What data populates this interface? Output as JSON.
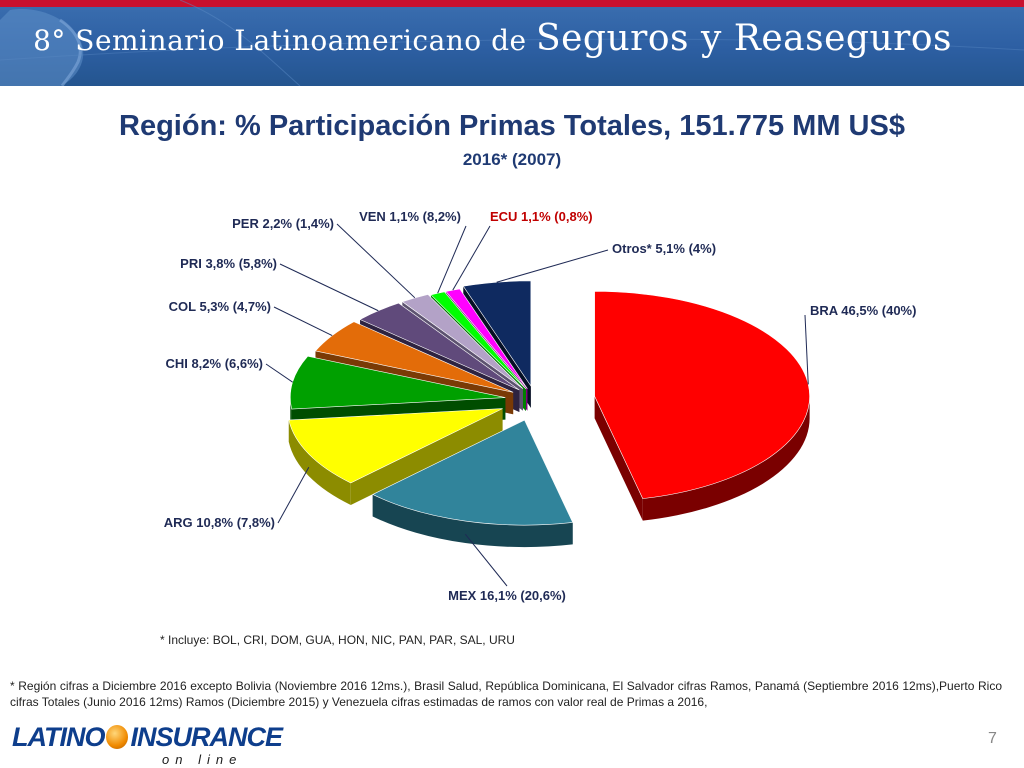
{
  "banner": {
    "prefix": "8° Seminario Latinoamericano de",
    "emphasis": "Seguros y Reaseguros"
  },
  "title": "Región: % Participación Primas Totales, 151.775 MM US$",
  "subtitle": "2016* (2007)",
  "chart_data": {
    "type": "pie",
    "title": "Región: % Participación Primas Totales, 151.775 MM US$",
    "subtitle": "2016* (2007)",
    "slices": [
      {
        "name": "BRA",
        "value": 46.5,
        "prev": 40.0,
        "label": "BRA 46,5% (40%)",
        "color": "#ff0000",
        "dark": "#7a0000",
        "label_red": false
      },
      {
        "name": "MEX",
        "value": 16.1,
        "prev": 20.6,
        "label": "MEX 16,1% (20,6%)",
        "color": "#31849b",
        "dark": "#174552",
        "label_red": false
      },
      {
        "name": "ARG",
        "value": 10.8,
        "prev": 7.8,
        "label": "ARG 10,8% (7,8%)",
        "color": "#ffff00",
        "dark": "#8c8c00",
        "label_red": false
      },
      {
        "name": "CHI",
        "value": 8.2,
        "prev": 6.6,
        "label": "CHI 8,2% (6,6%)",
        "color": "#00a000",
        "dark": "#004d00",
        "label_red": false
      },
      {
        "name": "COL",
        "value": 5.3,
        "prev": 4.7,
        "label": "COL 5,3% (4,7%)",
        "color": "#e36c09",
        "dark": "#7a3a05",
        "label_red": false
      },
      {
        "name": "PRI",
        "value": 3.8,
        "prev": 5.8,
        "label": "PRI 3,8% (5,8%)",
        "color": "#604a7b",
        "dark": "#2e2340",
        "label_red": false
      },
      {
        "name": "PER",
        "value": 2.2,
        "prev": 1.4,
        "label": "PER 2,2% (1,4%)",
        "color": "#b3a2c7",
        "dark": "#5d5370",
        "label_red": false
      },
      {
        "name": "VEN",
        "value": 1.1,
        "prev": 8.2,
        "label": "VEN 1,1% (8,2%)",
        "color": "#00ff00",
        "dark": "#008000",
        "label_red": false
      },
      {
        "name": "ECU",
        "value": 1.1,
        "prev": 0.8,
        "label": "ECU 1,1% (0,8%)",
        "color": "#ff00ff",
        "dark": "#800080",
        "label_red": true
      },
      {
        "name": "Otros*",
        "value": 5.1,
        "prev": 4.0,
        "label": "Otros* 5,1% (4%)",
        "color": "#0f2a60",
        "dark": "#050f24",
        "label_red": false
      }
    ]
  },
  "footnotes": {
    "otros": "* Incluye: BOL, CRI, DOM, GUA, HON, NIC, PAN, PAR, SAL, URU",
    "region": "* Región cifras a Diciembre 2016 excepto Bolivia (Noviembre 2016 12ms.), Brasil Salud, República Dominicana, El Salvador cifras Ramos, Panamá (Septiembre 2016 12ms),Puerto Rico cifras Totales (Junio 2016 12ms) Ramos (Diciembre 2015) y Venezuela cifras estimadas de ramos con valor real de Primas a 2016,"
  },
  "logo": {
    "left": "LATINO",
    "right": "INSURANCE",
    "sub": "on line"
  },
  "page_number": "7"
}
